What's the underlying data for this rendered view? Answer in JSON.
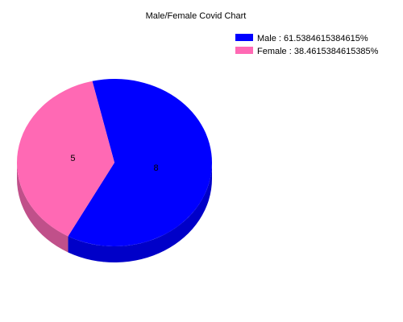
{
  "chart_data": {
    "type": "pie",
    "title": "Male/Female Covid Chart",
    "slices": [
      {
        "name": "Male",
        "value": 8,
        "color": "#0000FF",
        "side_color": "#0000C8"
      },
      {
        "name": "Female",
        "value": 5,
        "color": "#FF69B4",
        "side_color": "#C0508A"
      }
    ],
    "legend": [
      "Male : 61.5384615384615%",
      "Female : 38.4615384615385%"
    ],
    "style": "3d",
    "legend_position": "top-right"
  }
}
